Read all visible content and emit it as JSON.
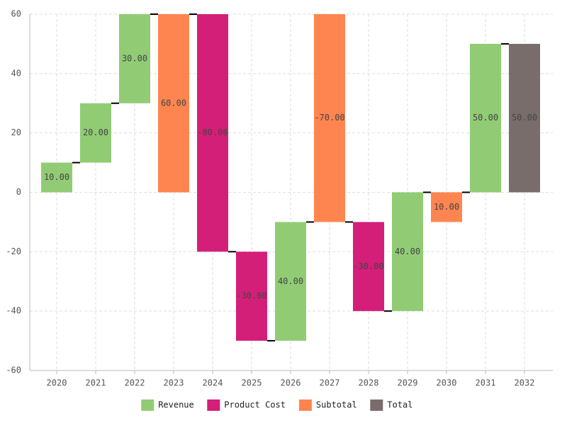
{
  "chart_data": {
    "type": "waterfall",
    "categories": [
      "2020",
      "2021",
      "2022",
      "2023",
      "2024",
      "2025",
      "2026",
      "2027",
      "2028",
      "2029",
      "2030",
      "2031",
      "2032"
    ],
    "series": [
      {
        "name": "Revenue",
        "color": "#91cc75",
        "values": [
          10,
          20,
          30,
          null,
          null,
          null,
          40,
          null,
          null,
          40,
          null,
          50,
          null
        ],
        "value_labels": [
          "10.00",
          "20.00",
          "30.00",
          null,
          null,
          null,
          "40.00",
          null,
          null,
          "40.00",
          null,
          "50.00",
          null
        ]
      },
      {
        "name": "Product Cost",
        "color": "#d41f79",
        "values": [
          null,
          null,
          null,
          null,
          -80,
          -30,
          null,
          null,
          -30,
          null,
          null,
          null,
          null
        ],
        "value_labels": [
          null,
          null,
          null,
          null,
          "-80.00",
          "-30.00",
          null,
          null,
          "-30.00",
          null,
          null,
          null,
          null
        ]
      },
      {
        "name": "Subtotal",
        "color": "#ff8550",
        "values": [
          null,
          null,
          null,
          60,
          null,
          null,
          null,
          -70,
          null,
          null,
          10,
          null,
          null
        ],
        "value_labels": [
          null,
          null,
          null,
          "60.00",
          null,
          null,
          null,
          "-70.00",
          null,
          null,
          "10.00",
          null,
          null
        ]
      },
      {
        "name": "Total",
        "color": "#786d6b",
        "values": [
          null,
          null,
          null,
          null,
          null,
          null,
          null,
          null,
          null,
          null,
          null,
          null,
          50
        ],
        "value_labels": [
          null,
          null,
          null,
          null,
          null,
          null,
          null,
          null,
          null,
          null,
          null,
          null,
          "50.00"
        ]
      }
    ],
    "ylim": [
      -60,
      60
    ],
    "yticks": [
      -60,
      -40,
      -20,
      0,
      20,
      40,
      60
    ],
    "grid": true
  }
}
